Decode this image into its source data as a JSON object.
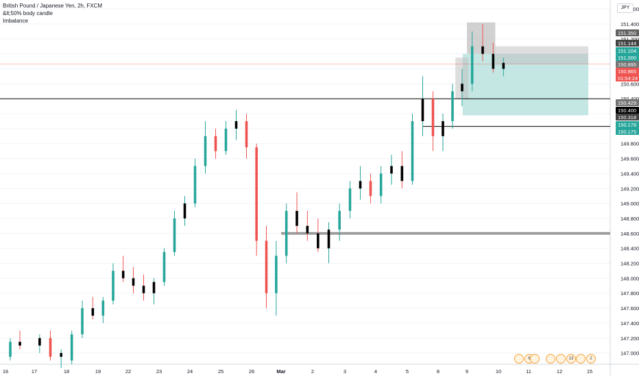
{
  "legend": {
    "symbol_line": "British Pound / Japanese Yen, 2h, FXCM",
    "indicator_1": "&lt;50% body candle",
    "indicator_2": "Imbalance"
  },
  "currency_button": "JPY",
  "colors": {
    "up": "#26a69a",
    "down": "#ef5350",
    "wick_up": "#26a69a",
    "wick_down": "#ef5350",
    "small_body": "#000000",
    "grid": "#f0f3fa",
    "hline": "#000000",
    "imbalance_zone": "#9e9e9e",
    "target_zone": "#b2dfdb",
    "stop_zone": "#bdbdbd",
    "current_price_line": "#ef5350"
  },
  "chart_data": {
    "type": "candlestick",
    "title": "British Pound / Japanese Yen, 2h, FXCM",
    "ylim": [
      146.85,
      151.72
    ],
    "y_ticks": [
      "147.000",
      "147.200",
      "147.400",
      "147.600",
      "147.800",
      "148.000",
      "148.200",
      "148.400",
      "148.600",
      "148.800",
      "149.000",
      "149.200",
      "149.400",
      "149.600",
      "149.800",
      "150.000",
      "150.200",
      "150.400",
      "150.600",
      "150.800",
      "151.000",
      "151.200",
      "151.400",
      "151.600"
    ],
    "x_labels": [
      "16",
      "17",
      "18",
      "19",
      "22",
      "23",
      "24",
      "25",
      "26",
      "Mar",
      "2",
      "3",
      "4",
      "5",
      "8",
      "9",
      "10",
      "11",
      "12",
      "15"
    ],
    "x_label_days": [
      0,
      1,
      2,
      3,
      4,
      5,
      6,
      7,
      8,
      9,
      10,
      11,
      12,
      13,
      14,
      15,
      16,
      17,
      18,
      19
    ],
    "price_tags": [
      {
        "value": "151.350",
        "color": "#616161"
      },
      {
        "value": "151.144",
        "color": "#424242"
      },
      {
        "value": "151.104",
        "color": "#26a69a"
      },
      {
        "value": "151.000",
        "color": "#26a69a"
      },
      {
        "value": "150.895",
        "color": "#757575"
      },
      {
        "value": "150.865",
        "color": "#ef5350"
      },
      {
        "value": "01:54:24",
        "color": "#ef5350"
      },
      {
        "value": "150.429",
        "color": "#757575"
      },
      {
        "value": "150.400",
        "color": "#000000"
      },
      {
        "value": "150.318",
        "color": "#424242"
      },
      {
        "value": "150.178",
        "color": "#26a69a"
      },
      {
        "value": "150.175",
        "color": "#26a69a"
      }
    ],
    "horizontal_lines": [
      150.4,
      150.03,
      148.6
    ],
    "current_price": 150.865,
    "series": [
      {
        "day": 0,
        "candles": [
          [
            146.95,
            147.2,
            146.9,
            147.15
          ],
          [
            147.15,
            147.3,
            147.05,
            147.1
          ]
        ]
      },
      {
        "day": 1,
        "candles": [
          [
            147.1,
            147.25,
            147.0,
            147.2
          ],
          [
            147.2,
            147.3,
            146.9,
            146.95
          ],
          [
            146.95,
            147.05,
            146.8,
            147.0
          ]
        ]
      },
      {
        "day": 2,
        "candles": [
          [
            146.9,
            147.3,
            146.85,
            147.25
          ],
          [
            147.25,
            147.7,
            147.2,
            147.6
          ],
          [
            147.6,
            147.75,
            147.45,
            147.5
          ]
        ]
      },
      {
        "day": 3,
        "candles": [
          [
            147.5,
            147.75,
            147.4,
            147.7
          ],
          [
            147.7,
            148.2,
            147.65,
            148.1
          ],
          [
            148.1,
            148.3,
            147.95,
            148.0
          ]
        ]
      },
      {
        "day": 4,
        "candles": [
          [
            148.0,
            148.15,
            147.8,
            147.9
          ],
          [
            147.9,
            148.05,
            147.7,
            147.8
          ],
          [
            147.8,
            148.0,
            147.65,
            147.95
          ]
        ]
      },
      {
        "day": 5,
        "candles": [
          [
            147.95,
            148.4,
            147.9,
            148.35
          ],
          [
            148.35,
            148.9,
            148.3,
            148.8
          ],
          [
            148.8,
            149.1,
            148.7,
            149.0
          ]
        ]
      },
      {
        "day": 6,
        "candles": [
          [
            149.0,
            149.6,
            148.95,
            149.5
          ],
          [
            149.5,
            150.1,
            149.4,
            149.9
          ],
          [
            149.9,
            150.0,
            149.6,
            149.7
          ]
        ]
      },
      {
        "day": 7,
        "candles": [
          [
            149.7,
            150.1,
            149.65,
            150.0
          ],
          [
            150.0,
            150.25,
            149.85,
            150.1
          ],
          [
            150.1,
            150.2,
            149.6,
            149.75
          ]
        ]
      },
      {
        "day": 8,
        "candles": [
          [
            149.75,
            149.8,
            148.3,
            148.5
          ],
          [
            148.5,
            148.7,
            147.6,
            147.8
          ],
          [
            147.8,
            148.5,
            147.5,
            148.3
          ]
        ]
      },
      {
        "day": 9,
        "candles": [
          [
            148.3,
            149.0,
            148.2,
            148.9
          ],
          [
            148.9,
            149.15,
            148.6,
            148.7
          ],
          [
            148.7,
            148.9,
            148.5,
            148.6
          ]
        ]
      },
      {
        "day": 10,
        "candles": [
          [
            148.6,
            148.8,
            148.35,
            148.4
          ],
          [
            148.4,
            148.75,
            148.2,
            148.65
          ],
          [
            148.65,
            149.0,
            148.5,
            148.9
          ]
        ]
      },
      {
        "day": 11,
        "candles": [
          [
            148.9,
            149.3,
            148.8,
            149.2
          ],
          [
            149.2,
            149.5,
            149.05,
            149.3
          ],
          [
            149.3,
            149.4,
            149.0,
            149.1
          ]
        ]
      },
      {
        "day": 12,
        "candles": [
          [
            149.1,
            149.5,
            149.0,
            149.4
          ],
          [
            149.4,
            149.65,
            149.25,
            149.5
          ],
          [
            149.5,
            149.7,
            149.2,
            149.3
          ]
        ]
      },
      {
        "day": 13,
        "candles": [
          [
            149.3,
            150.2,
            149.25,
            150.1
          ],
          [
            150.1,
            150.7,
            149.9,
            150.4
          ],
          [
            150.4,
            150.5,
            149.7,
            149.9
          ]
        ]
      },
      {
        "day": 14,
        "candles": [
          [
            149.9,
            150.2,
            149.7,
            150.1
          ],
          [
            150.1,
            150.6,
            150.0,
            150.5
          ],
          [
            150.5,
            150.8,
            150.3,
            150.6
          ]
        ]
      },
      {
        "day": 15,
        "candles": [
          [
            150.6,
            151.3,
            150.5,
            151.1
          ],
          [
            151.1,
            151.4,
            150.9,
            151.0
          ],
          [
            151.0,
            151.15,
            150.75,
            150.8
          ]
        ]
      },
      {
        "day": 16,
        "candles": [
          [
            150.8,
            150.95,
            150.7,
            150.88
          ]
        ]
      }
    ]
  },
  "events": [
    {
      "label": "6"
    },
    {
      "label": ""
    },
    {
      "label": ""
    },
    {
      "label": "13"
    },
    {
      "label": "2"
    }
  ]
}
